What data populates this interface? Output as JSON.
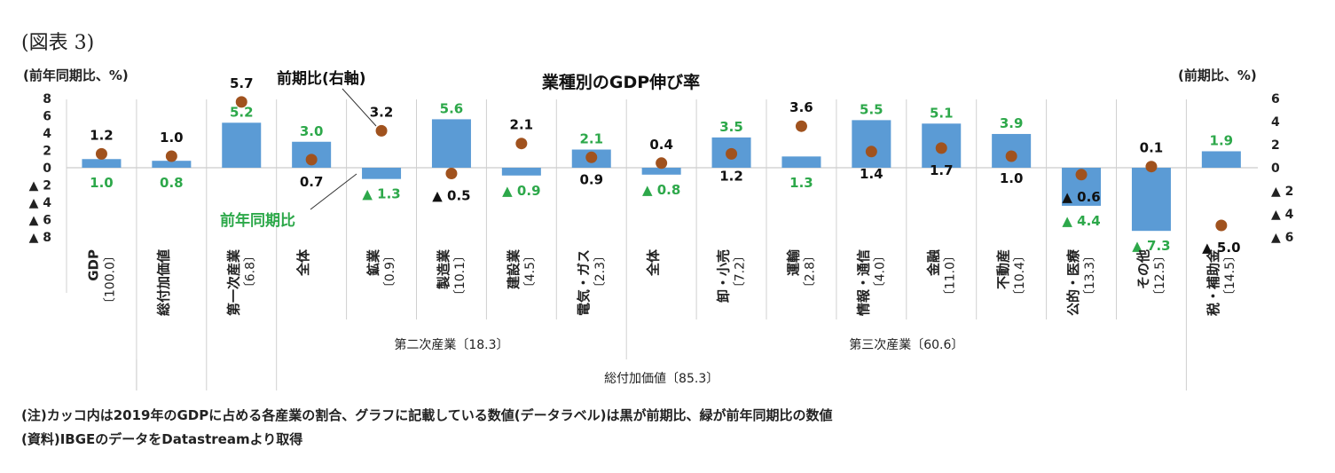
{
  "figure_label": "(図表 3)",
  "footnotes": {
    "note": "(注)カッコ内は2019年のGDPに占める各産業の割合、グラフに記載している数値(データラベル)は黒が前期比、緑が前年同期比の数値",
    "source": "(資料)IBGEのデータをDatastreamより取得"
  },
  "chart_data": {
    "type": "bar",
    "title": "業種別のGDP伸び率",
    "ylabel_left": "(前年同期比、%)",
    "ylabel_right": "(前期比、%)",
    "ylim_left": [
      -8,
      8
    ],
    "ylim_right": [
      -6,
      6
    ],
    "left_ticks": [
      "8",
      "6",
      "4",
      "2",
      "0",
      "▲ 2",
      "▲ 4",
      "▲ 6",
      "▲ 8"
    ],
    "right_ticks": [
      "6",
      "4",
      "2",
      "0",
      "▲ 2",
      "▲ 4",
      "▲ 6"
    ],
    "categories": [
      {
        "name": "GDP",
        "weight": "〔100.0〕"
      },
      {
        "name": "総付加価値",
        "weight": ""
      },
      {
        "name": "第一次産業",
        "weight": "〔6.8〕"
      },
      {
        "name": "全体",
        "weight": ""
      },
      {
        "name": "鉱業",
        "weight": "〔0.9〕"
      },
      {
        "name": "製造業",
        "weight": "〔10.1〕"
      },
      {
        "name": "建設業",
        "weight": "〔4.5〕"
      },
      {
        "name": "電気・ガス",
        "weight": "〔2.3〕"
      },
      {
        "name": "全体",
        "weight": ""
      },
      {
        "name": "卸・小売",
        "weight": "〔7.2〕"
      },
      {
        "name": "運輸",
        "weight": "〔2.8〕"
      },
      {
        "name": "情報・通信",
        "weight": "〔4.0〕"
      },
      {
        "name": "金融",
        "weight": "〔11.0〕"
      },
      {
        "name": "不動産",
        "weight": "〔10.4〕"
      },
      {
        "name": "公的・医療",
        "weight": "〔13.3〕"
      },
      {
        "name": "その他",
        "weight": "〔12.5〕"
      },
      {
        "name": "税・補助金",
        "weight": "〔14.5〕"
      }
    ],
    "series": [
      {
        "name": "前年同期比",
        "kind": "bar",
        "axis": "left",
        "color": "#5b9bd5",
        "label_color": "#2da84a",
        "values": [
          1.0,
          0.8,
          5.2,
          3.0,
          -1.3,
          5.6,
          -0.9,
          2.1,
          -0.8,
          3.5,
          1.3,
          5.5,
          5.1,
          3.9,
          -4.4,
          -7.3,
          1.9
        ],
        "labels": [
          "1.0",
          "0.8",
          "5.2",
          "3.0",
          "▲ 1.3",
          "5.6",
          "▲ 0.9",
          "2.1",
          "▲ 0.8",
          "3.5",
          "1.3",
          "5.5",
          "5.1",
          "3.9",
          "▲ 4.4",
          "▲ 7.3",
          "1.9"
        ]
      },
      {
        "name": "前期比",
        "kind": "dot",
        "axis": "right",
        "color": "#a0521e",
        "label_color": "#111111",
        "values": [
          1.2,
          1.0,
          5.7,
          0.7,
          3.2,
          -0.5,
          2.1,
          0.9,
          0.4,
          1.2,
          3.6,
          1.4,
          1.7,
          1.0,
          -0.6,
          0.1,
          -5.0
        ],
        "labels": [
          "1.2",
          "1.0",
          "5.7",
          "0.7",
          "3.2",
          "▲ 0.5",
          "2.1",
          "0.9",
          "0.4",
          "1.2",
          "3.6",
          "1.4",
          "1.7",
          "1.0",
          "▲ 0.6",
          "0.1",
          "▲ 5.0"
        ]
      }
    ],
    "annotations": [
      {
        "text": "前期比(右軸)",
        "color": "#111111"
      },
      {
        "text": "前年同期比",
        "color": "#2da84a"
      }
    ],
    "groups": [
      {
        "name": "第二次産業〔18.3〕"
      },
      {
        "name": "第三次産業〔60.6〕"
      },
      {
        "name": "総付加価値〔85.3〕"
      }
    ],
    "grid": false,
    "legend": "none"
  }
}
